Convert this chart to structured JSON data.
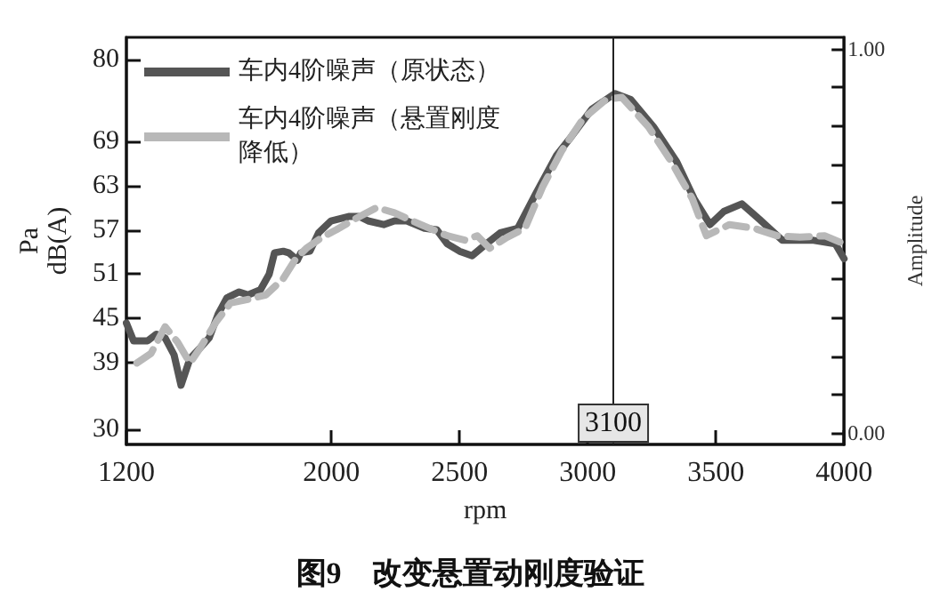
{
  "chart_data": {
    "type": "line",
    "title": "图9　改变悬置动刚度验证",
    "xlabel": "rpm",
    "ylabel": "Pa\ndB(A)",
    "y2label": "Amplitude",
    "xlim": [
      1200,
      4000
    ],
    "xticks": [
      1200,
      2000,
      2500,
      3000,
      3500,
      4000
    ],
    "ylim": [
      28,
      83
    ],
    "yticks": [
      30,
      39,
      45,
      51,
      57,
      63,
      69,
      80
    ],
    "y2lim": [
      -0.03,
      1.03
    ],
    "y2ticks": [
      {
        "value": 0,
        "label": "0.00"
      },
      {
        "value": 0.1,
        "label": null
      },
      {
        "value": 0.2,
        "label": null
      },
      {
        "value": 0.3,
        "label": null
      },
      {
        "value": 0.4,
        "label": null
      },
      {
        "value": 0.5,
        "label": null
      },
      {
        "value": 0.6,
        "label": null
      },
      {
        "value": 0.7,
        "label": null
      },
      {
        "value": 0.8,
        "label": null
      },
      {
        "value": 0.9,
        "label": null
      },
      {
        "value": 1,
        "label": "1.00"
      }
    ],
    "legend": "top left",
    "marker": "none",
    "ref_lines": [
      {
        "axis": "x",
        "value": 3100,
        "label": "3100",
        "color": "#222222"
      }
    ],
    "series": [
      {
        "name": "车内4阶噪声（原状态）",
        "color": "#555555",
        "line_style": "solid",
        "x": [
          1200,
          1228,
          1283,
          1317,
          1351,
          1386,
          1413,
          1448,
          1489,
          1523,
          1558,
          1592,
          1640,
          1675,
          1723,
          1757,
          1778,
          1812,
          1833,
          1867,
          1881,
          1916,
          1950,
          1998,
          2067,
          2108,
          2143,
          2204,
          2246,
          2294,
          2363,
          2411,
          2452,
          2500,
          2549,
          2604,
          2659,
          2727,
          2796,
          2879,
          2934,
          3016,
          3106,
          3168,
          3257,
          3347,
          3415,
          3477,
          3532,
          3601,
          3670,
          3759,
          3876,
          3966,
          4000
        ],
        "values": [
          44.4,
          42.0,
          42.0,
          42.9,
          42.4,
          40.1,
          36.0,
          39.6,
          41.1,
          42.4,
          45.6,
          47.8,
          48.6,
          48.2,
          48.9,
          51.0,
          53.9,
          54.1,
          53.9,
          52.9,
          53.9,
          54.1,
          56.6,
          58.2,
          58.8,
          58.8,
          58.2,
          57.7,
          58.2,
          58.2,
          57.2,
          57.0,
          55.1,
          54.1,
          53.5,
          55.1,
          56.6,
          57.2,
          61.8,
          67.1,
          69.5,
          73.3,
          75.4,
          74.6,
          70.9,
          66.2,
          61.2,
          57.7,
          59.5,
          60.5,
          58.4,
          55.6,
          55.6,
          55.1,
          53.1
        ]
      },
      {
        "name": "车内4阶噪声（悬置刚度降低）",
        "color": "#b8b8b8",
        "line_style": "dashed",
        "x": [
          1241,
          1296,
          1351,
          1400,
          1448,
          1489,
          1551,
          1606,
          1675,
          1744,
          1812,
          1861,
          1902,
          1964,
          2019,
          2088,
          2177,
          2246,
          2315,
          2383,
          2452,
          2521,
          2569,
          2617,
          2686,
          2755,
          2824,
          2899,
          2982,
          3071,
          3133,
          3237,
          3326,
          3408,
          3463,
          3553,
          3649,
          3738,
          3828,
          3924,
          4000
        ],
        "values": [
          39.0,
          40.3,
          43.9,
          41.8,
          39.0,
          41.1,
          44.6,
          47.1,
          47.6,
          48.2,
          50.4,
          53.1,
          54.5,
          56.0,
          57.0,
          58.4,
          60.0,
          59.3,
          58.2,
          57.2,
          56.2,
          55.6,
          56.2,
          54.5,
          56.0,
          57.2,
          62.8,
          67.7,
          72.0,
          74.6,
          74.9,
          70.9,
          66.2,
          61.2,
          56.2,
          57.7,
          57.2,
          56.2,
          56.0,
          56.2,
          55.1
        ]
      }
    ]
  }
}
